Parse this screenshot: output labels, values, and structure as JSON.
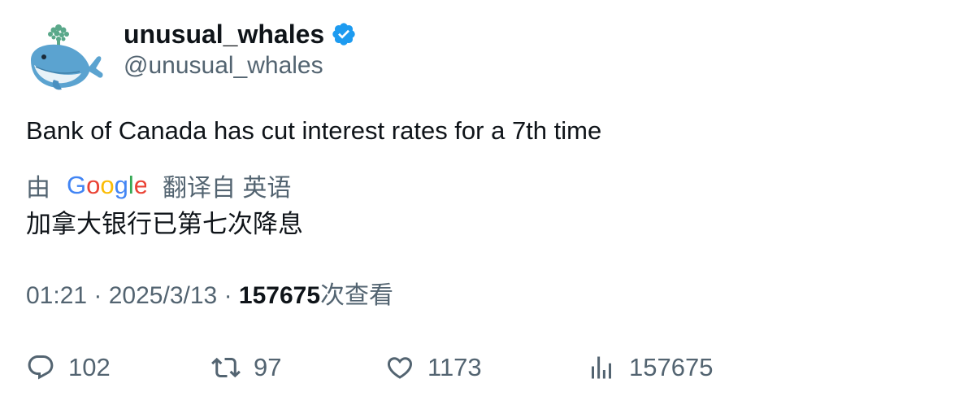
{
  "author": {
    "display_name": "unusual_whales",
    "handle": "@unusual_whales",
    "verified": true,
    "avatar_icon": "whale-avatar-icon",
    "verified_icon": "verified-badge-icon",
    "verified_color": "#1d9bf0"
  },
  "tweet": {
    "text": "Bank of Canada has cut interest rates for a 7th time"
  },
  "translation": {
    "prefix": "由",
    "provider": "Google",
    "suffix": "翻译自 英语",
    "text": "加拿大银行已第七次降息"
  },
  "meta": {
    "time": "01:21",
    "separator": "·",
    "date": "2025/3/13",
    "views_count": "157675",
    "views_label": "次查看"
  },
  "actions": {
    "reply_count": "102",
    "retweet_count": "97",
    "like_count": "1173",
    "views_count": "157675"
  },
  "colors": {
    "text_primary": "#0f1419",
    "text_secondary": "#536471",
    "accent": "#1d9bf0"
  }
}
